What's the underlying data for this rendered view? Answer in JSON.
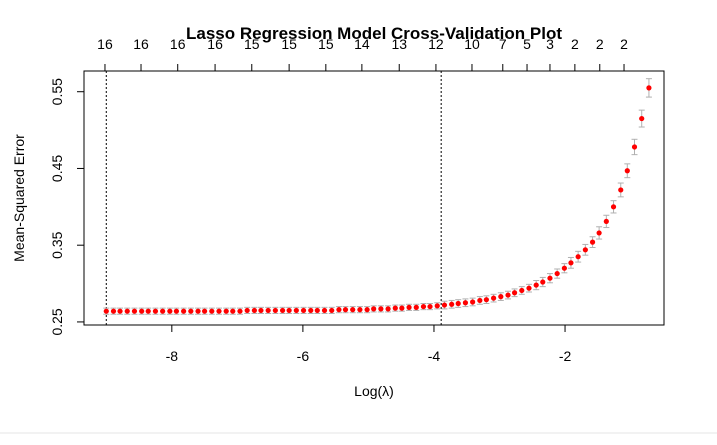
{
  "chart_data": {
    "type": "scatter",
    "title": "Lasso Regression Model Cross-Validation Plot",
    "xlabel": "Log(λ)",
    "ylabel": "Mean-Squared Error",
    "x": [
      -9.0,
      -8.89,
      -8.79,
      -8.68,
      -8.57,
      -8.46,
      -8.36,
      -8.25,
      -8.14,
      -8.03,
      -7.93,
      -7.82,
      -7.71,
      -7.6,
      -7.5,
      -7.39,
      -7.28,
      -7.17,
      -7.07,
      -6.96,
      -6.85,
      -6.74,
      -6.64,
      -6.53,
      -6.42,
      -6.31,
      -6.21,
      -6.1,
      -5.99,
      -5.88,
      -5.78,
      -5.67,
      -5.56,
      -5.45,
      -5.35,
      -5.24,
      -5.13,
      -5.02,
      -4.92,
      -4.81,
      -4.7,
      -4.59,
      -4.49,
      -4.38,
      -4.27,
      -4.16,
      -4.06,
      -3.95,
      -3.84,
      -3.73,
      -3.63,
      -3.52,
      -3.41,
      -3.3,
      -3.2,
      -3.09,
      -2.98,
      -2.87,
      -2.77,
      -2.66,
      -2.55,
      -2.44,
      -2.34,
      -2.23,
      -2.12,
      -2.01,
      -1.91,
      -1.8,
      -1.69,
      -1.58,
      -1.48,
      -1.37,
      -1.26,
      -1.15,
      -1.05,
      -0.94,
      -0.83,
      -0.72
    ],
    "series": [
      {
        "color": "#ff0000",
        "error_color": "#b0b0b0",
        "values": [
          0.264,
          0.264,
          0.264,
          0.264,
          0.264,
          0.264,
          0.264,
          0.264,
          0.264,
          0.264,
          0.264,
          0.264,
          0.264,
          0.264,
          0.264,
          0.264,
          0.264,
          0.264,
          0.264,
          0.264,
          0.265,
          0.265,
          0.265,
          0.265,
          0.265,
          0.265,
          0.265,
          0.265,
          0.265,
          0.265,
          0.265,
          0.265,
          0.265,
          0.266,
          0.266,
          0.266,
          0.266,
          0.266,
          0.267,
          0.267,
          0.267,
          0.268,
          0.268,
          0.269,
          0.269,
          0.27,
          0.27,
          0.271,
          0.272,
          0.273,
          0.274,
          0.275,
          0.276,
          0.278,
          0.279,
          0.281,
          0.283,
          0.285,
          0.288,
          0.291,
          0.294,
          0.298,
          0.302,
          0.307,
          0.313,
          0.32,
          0.327,
          0.335,
          0.344,
          0.354,
          0.366,
          0.381,
          0.4,
          0.422,
          0.447,
          0.478,
          0.515,
          0.555
        ],
        "errors": [
          0.004,
          0.004,
          0.004,
          0.004,
          0.004,
          0.004,
          0.004,
          0.004,
          0.004,
          0.004,
          0.004,
          0.004,
          0.004,
          0.004,
          0.004,
          0.004,
          0.004,
          0.004,
          0.004,
          0.004,
          0.004,
          0.004,
          0.004,
          0.004,
          0.004,
          0.004,
          0.004,
          0.004,
          0.004,
          0.004,
          0.004,
          0.004,
          0.004,
          0.004,
          0.004,
          0.004,
          0.004,
          0.004,
          0.004,
          0.004,
          0.004,
          0.004,
          0.004,
          0.004,
          0.004,
          0.004,
          0.004,
          0.004,
          0.005,
          0.005,
          0.005,
          0.005,
          0.005,
          0.005,
          0.005,
          0.005,
          0.005,
          0.005,
          0.005,
          0.005,
          0.005,
          0.006,
          0.006,
          0.006,
          0.006,
          0.006,
          0.007,
          0.007,
          0.007,
          0.007,
          0.008,
          0.008,
          0.008,
          0.009,
          0.009,
          0.01,
          0.011,
          0.012
        ]
      }
    ],
    "xlim": [
      -9.34,
      -0.49
    ],
    "ylim": [
      0.246,
      0.577
    ],
    "xticks": [
      -8,
      -6,
      -4,
      -2
    ],
    "yticks": [
      0.25,
      0.35,
      0.45,
      0.55
    ],
    "top_ticks": [
      {
        "value": -9.02,
        "label": "16"
      },
      {
        "value": -8.47,
        "label": "16"
      },
      {
        "value": -7.91,
        "label": "16"
      },
      {
        "value": -7.34,
        "label": "16"
      },
      {
        "value": -6.78,
        "label": "15"
      },
      {
        "value": -6.21,
        "label": "15"
      },
      {
        "value": -5.65,
        "label": "15"
      },
      {
        "value": -5.1,
        "label": "14"
      },
      {
        "value": -4.53,
        "label": "13"
      },
      {
        "value": -3.97,
        "label": "12"
      },
      {
        "value": -3.42,
        "label": "10"
      },
      {
        "value": -2.95,
        "label": "7"
      },
      {
        "value": -2.58,
        "label": "5"
      },
      {
        "value": -2.23,
        "label": "3"
      },
      {
        "value": -1.85,
        "label": "2"
      },
      {
        "value": -1.47,
        "label": "2"
      },
      {
        "value": -1.1,
        "label": "2"
      }
    ],
    "vlines": [
      -9.0,
      -3.89
    ]
  }
}
